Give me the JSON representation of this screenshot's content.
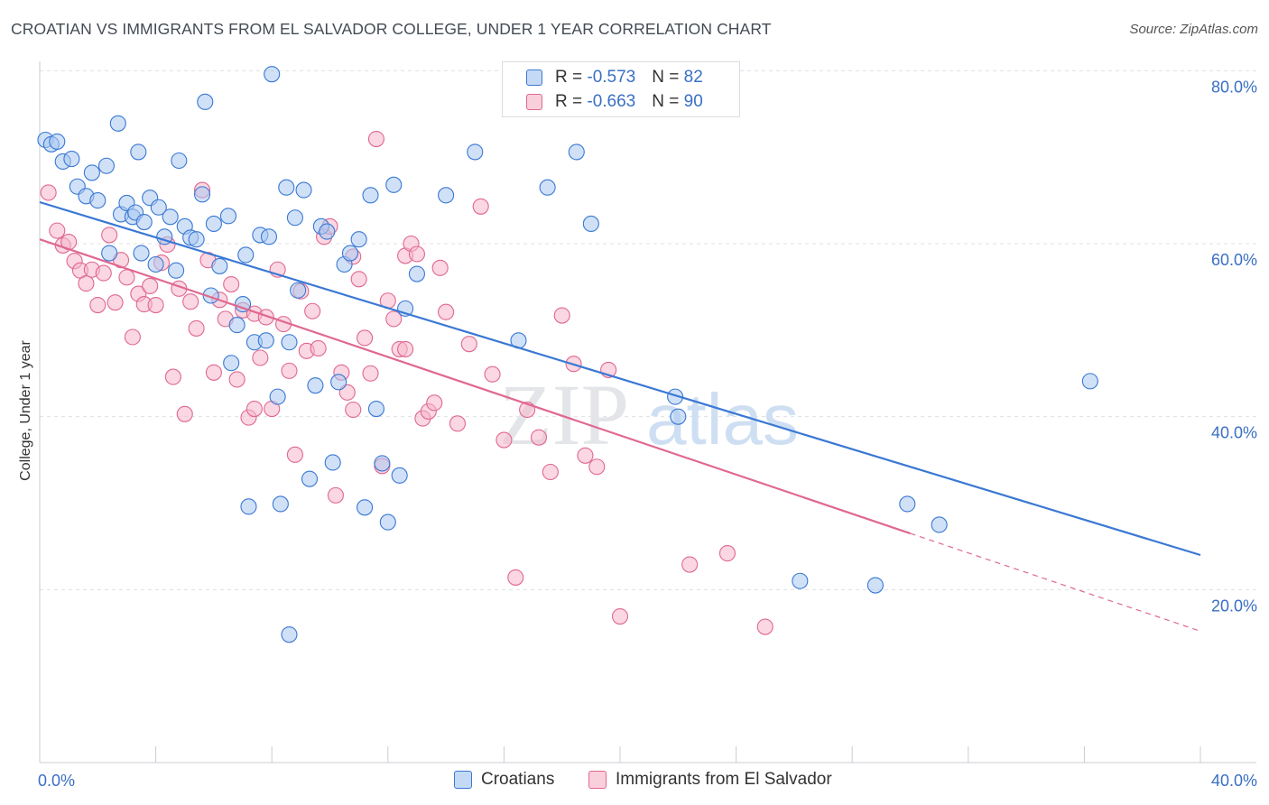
{
  "title": "CROATIAN VS IMMIGRANTS FROM EL SALVADOR COLLEGE, UNDER 1 YEAR CORRELATION CHART",
  "source": "Source: ZipAtlas.com",
  "colors": {
    "blue": "#3a78d4",
    "blue_fill": "#aac8f0",
    "pink": "#e06890",
    "pink_fill": "#f5b7ca",
    "tick_label": "#3a6fc4"
  },
  "legend": {
    "rows": [
      {
        "r_label": "R = ",
        "r_value": "-0.573",
        "n_label": "N = ",
        "n_value": "82"
      },
      {
        "r_label": "R = ",
        "r_value": "-0.663",
        "n_label": "N = ",
        "n_value": "90"
      }
    ]
  },
  "bottom_legend": [
    "Croatians",
    "Immigrants from El Salvador"
  ],
  "chart_data": {
    "type": "scatter",
    "title": "CROATIAN VS IMMIGRANTS FROM EL SALVADOR COLLEGE, UNDER 1 YEAR CORRELATION CHART",
    "xlabel": "",
    "ylabel": "College, Under 1 year",
    "xlim": [
      0,
      40
    ],
    "ylim": [
      0,
      80
    ],
    "x_tick_labels": [
      "0.0%",
      "40.0%"
    ],
    "y_ticks": [
      20,
      40,
      60,
      80
    ],
    "y_tick_labels": [
      "20.0%",
      "40.0%",
      "60.0%",
      "80.0%"
    ],
    "grid": true,
    "legend_position": "top-center",
    "watermark": "ZIPatlas",
    "series": [
      {
        "name": "Croatians",
        "color": "#3a78d4",
        "R": -0.573,
        "N": 82,
        "trend": {
          "x": [
            0,
            40
          ],
          "y": [
            64.8,
            24.0
          ]
        },
        "points": [
          [
            0.2,
            72.0
          ],
          [
            0.4,
            71.5
          ],
          [
            0.6,
            71.8
          ],
          [
            0.8,
            69.5
          ],
          [
            1.1,
            69.8
          ],
          [
            1.3,
            66.6
          ],
          [
            1.6,
            65.5
          ],
          [
            1.8,
            68.2
          ],
          [
            2.0,
            65.0
          ],
          [
            2.3,
            69.0
          ],
          [
            2.4,
            58.9
          ],
          [
            2.7,
            73.9
          ],
          [
            2.8,
            63.4
          ],
          [
            3.0,
            64.7
          ],
          [
            3.2,
            63.1
          ],
          [
            3.3,
            63.6
          ],
          [
            3.4,
            70.6
          ],
          [
            3.5,
            58.9
          ],
          [
            3.6,
            62.5
          ],
          [
            3.8,
            65.3
          ],
          [
            4.0,
            57.6
          ],
          [
            4.1,
            64.2
          ],
          [
            4.3,
            60.8
          ],
          [
            4.5,
            63.1
          ],
          [
            4.7,
            56.9
          ],
          [
            4.8,
            69.6
          ],
          [
            5.0,
            62.0
          ],
          [
            5.2,
            60.7
          ],
          [
            5.4,
            60.5
          ],
          [
            5.6,
            65.7
          ],
          [
            5.7,
            76.4
          ],
          [
            5.9,
            54.0
          ],
          [
            6.0,
            62.3
          ],
          [
            6.2,
            57.4
          ],
          [
            6.5,
            63.2
          ],
          [
            6.6,
            46.2
          ],
          [
            6.8,
            50.6
          ],
          [
            7.0,
            53.0
          ],
          [
            7.1,
            58.7
          ],
          [
            7.2,
            29.6
          ],
          [
            7.4,
            48.6
          ],
          [
            7.6,
            61.0
          ],
          [
            7.8,
            48.8
          ],
          [
            7.9,
            60.8
          ],
          [
            8.0,
            79.6
          ],
          [
            8.2,
            42.3
          ],
          [
            8.3,
            29.9
          ],
          [
            8.5,
            66.5
          ],
          [
            8.6,
            48.6
          ],
          [
            8.8,
            63.0
          ],
          [
            8.9,
            54.6
          ],
          [
            9.1,
            66.2
          ],
          [
            9.3,
            32.8
          ],
          [
            9.5,
            43.6
          ],
          [
            9.7,
            62.0
          ],
          [
            9.9,
            61.4
          ],
          [
            10.1,
            34.7
          ],
          [
            10.3,
            44.0
          ],
          [
            10.5,
            57.6
          ],
          [
            10.7,
            58.9
          ],
          [
            11.0,
            60.5
          ],
          [
            11.2,
            29.5
          ],
          [
            11.4,
            65.6
          ],
          [
            11.6,
            40.9
          ],
          [
            11.8,
            34.6
          ],
          [
            12.0,
            27.8
          ],
          [
            12.2,
            66.8
          ],
          [
            12.4,
            33.2
          ],
          [
            12.6,
            52.5
          ],
          [
            13.0,
            56.5
          ],
          [
            14.0,
            65.6
          ],
          [
            15.0,
            70.6
          ],
          [
            16.5,
            48.8
          ],
          [
            17.5,
            66.5
          ],
          [
            18.5,
            70.6
          ],
          [
            19.0,
            62.3
          ],
          [
            21.9,
            42.3
          ],
          [
            22.0,
            40.0
          ],
          [
            29.9,
            29.9
          ],
          [
            31.0,
            27.5
          ],
          [
            26.2,
            21.0
          ],
          [
            28.8,
            20.5
          ],
          [
            36.2,
            44.1
          ],
          [
            8.6,
            14.8
          ]
        ]
      },
      {
        "name": "Immigrants from El Salvador",
        "color": "#e06890",
        "R": -0.663,
        "N": 90,
        "trend": {
          "x": [
            0,
            30
          ],
          "y": [
            60.5,
            26.5
          ]
        },
        "trend_dashed": {
          "x": [
            30,
            40
          ],
          "y": [
            26.5,
            15.2
          ]
        },
        "points": [
          [
            0.3,
            65.9
          ],
          [
            0.6,
            61.5
          ],
          [
            0.8,
            59.8
          ],
          [
            1.0,
            60.2
          ],
          [
            1.2,
            58.0
          ],
          [
            1.4,
            56.9
          ],
          [
            1.6,
            55.4
          ],
          [
            1.8,
            57.0
          ],
          [
            2.0,
            52.9
          ],
          [
            2.2,
            56.6
          ],
          [
            2.4,
            61.0
          ],
          [
            2.6,
            53.2
          ],
          [
            2.8,
            58.1
          ],
          [
            3.0,
            56.1
          ],
          [
            3.2,
            49.2
          ],
          [
            3.4,
            54.2
          ],
          [
            3.6,
            53.0
          ],
          [
            3.8,
            55.1
          ],
          [
            4.0,
            52.9
          ],
          [
            4.2,
            57.8
          ],
          [
            4.4,
            59.9
          ],
          [
            4.6,
            44.6
          ],
          [
            4.8,
            54.8
          ],
          [
            5.0,
            40.3
          ],
          [
            5.2,
            53.3
          ],
          [
            5.4,
            50.2
          ],
          [
            5.6,
            66.2
          ],
          [
            5.8,
            58.1
          ],
          [
            6.0,
            45.1
          ],
          [
            6.2,
            53.5
          ],
          [
            6.4,
            51.3
          ],
          [
            6.6,
            55.3
          ],
          [
            6.8,
            44.3
          ],
          [
            7.0,
            52.3
          ],
          [
            7.2,
            39.9
          ],
          [
            7.4,
            51.9
          ],
          [
            7.6,
            46.8
          ],
          [
            7.8,
            51.5
          ],
          [
            8.0,
            40.9
          ],
          [
            8.2,
            57.0
          ],
          [
            8.4,
            50.7
          ],
          [
            8.6,
            45.3
          ],
          [
            8.8,
            35.6
          ],
          [
            9.0,
            54.5
          ],
          [
            9.2,
            47.6
          ],
          [
            9.4,
            52.2
          ],
          [
            9.6,
            47.9
          ],
          [
            9.8,
            60.8
          ],
          [
            10.0,
            62.0
          ],
          [
            10.2,
            30.9
          ],
          [
            10.4,
            45.1
          ],
          [
            10.6,
            42.8
          ],
          [
            10.8,
            58.5
          ],
          [
            11.0,
            55.9
          ],
          [
            11.2,
            49.1
          ],
          [
            11.4,
            45.0
          ],
          [
            11.6,
            72.1
          ],
          [
            11.8,
            34.3
          ],
          [
            12.0,
            53.4
          ],
          [
            12.2,
            51.3
          ],
          [
            12.4,
            47.8
          ],
          [
            12.6,
            58.6
          ],
          [
            12.8,
            60.0
          ],
          [
            13.0,
            58.8
          ],
          [
            13.2,
            39.8
          ],
          [
            13.4,
            40.6
          ],
          [
            13.6,
            41.6
          ],
          [
            13.8,
            57.2
          ],
          [
            14.0,
            52.1
          ],
          [
            14.4,
            39.2
          ],
          [
            14.8,
            48.4
          ],
          [
            15.2,
            64.3
          ],
          [
            15.6,
            44.9
          ],
          [
            16.0,
            37.3
          ],
          [
            16.4,
            21.4
          ],
          [
            16.8,
            40.8
          ],
          [
            17.2,
            37.6
          ],
          [
            17.6,
            33.6
          ],
          [
            18.0,
            51.7
          ],
          [
            18.4,
            46.1
          ],
          [
            18.8,
            35.5
          ],
          [
            19.2,
            34.2
          ],
          [
            19.6,
            45.4
          ],
          [
            20.0,
            16.9
          ],
          [
            22.4,
            22.9
          ],
          [
            23.7,
            24.2
          ],
          [
            25.0,
            15.7
          ],
          [
            10.8,
            40.8
          ],
          [
            7.4,
            40.9
          ],
          [
            12.6,
            47.8
          ]
        ]
      }
    ]
  }
}
